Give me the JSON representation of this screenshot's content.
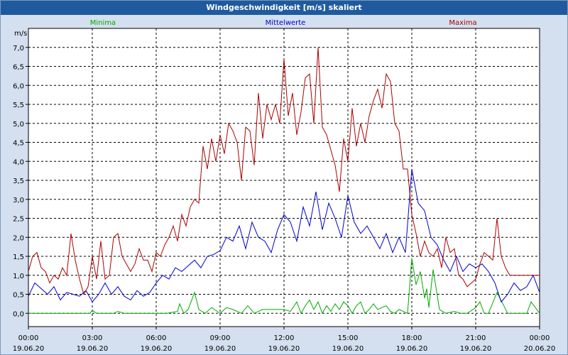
{
  "window": {
    "title": "Windgeschwindigkeit [m/s] skaliert"
  },
  "chart_data": {
    "type": "line",
    "title": "Windgeschwindigkeit [m/s] skaliert",
    "ylabel": "m/s",
    "xlabel": "",
    "ylim": [
      -0.35,
      7.5
    ],
    "xlim": [
      0,
      24
    ],
    "grid": true,
    "y_ticks": [
      {
        "value": 0.0,
        "label": "0,0"
      },
      {
        "value": 0.5,
        "label": "0,5"
      },
      {
        "value": 1.0,
        "label": "1,0"
      },
      {
        "value": 1.5,
        "label": "1,5"
      },
      {
        "value": 2.0,
        "label": "2,0"
      },
      {
        "value": 2.5,
        "label": "2,5"
      },
      {
        "value": 3.0,
        "label": "3,0"
      },
      {
        "value": 3.5,
        "label": "3,5"
      },
      {
        "value": 4.0,
        "label": "4,0"
      },
      {
        "value": 4.5,
        "label": "4,5"
      },
      {
        "value": 5.0,
        "label": "5,0"
      },
      {
        "value": 5.5,
        "label": "5,5"
      },
      {
        "value": 6.0,
        "label": "6,0"
      },
      {
        "value": 6.5,
        "label": "6,5"
      },
      {
        "value": 7.0,
        "label": "7,0"
      }
    ],
    "x_ticks": [
      {
        "value": 0,
        "time": "00:00",
        "date": "19.06.20"
      },
      {
        "value": 3,
        "time": "03:00",
        "date": "19.06.20"
      },
      {
        "value": 6,
        "time": "06:00",
        "date": "19.06.20"
      },
      {
        "value": 9,
        "time": "09:00",
        "date": "19.06.20"
      },
      {
        "value": 12,
        "time": "12:00",
        "date": "19.06.20"
      },
      {
        "value": 15,
        "time": "15:00",
        "date": "19.06.20"
      },
      {
        "value": 18,
        "time": "18:00",
        "date": "19.06.20"
      },
      {
        "value": 21,
        "time": "21:00",
        "date": "19.06.20"
      },
      {
        "value": 24,
        "time": "00:00",
        "date": "20.06.20"
      }
    ],
    "series": [
      {
        "name": "Minima",
        "color": "#00aa00",
        "x": [
          0,
          0.5,
          1,
          1.5,
          2,
          2.5,
          2.9,
          3.0,
          3.2,
          3.5,
          4,
          4.2,
          4.5,
          5,
          5.5,
          6,
          6.5,
          7.0,
          7.1,
          7.3,
          7.5,
          7.8,
          8,
          8.3,
          8.6,
          9,
          9.3,
          9.6,
          10,
          10.3,
          10.6,
          11,
          11.5,
          12,
          12.3,
          12.6,
          12.8,
          13,
          13.2,
          13.4,
          13.6,
          13.8,
          14,
          14.2,
          14.4,
          14.6,
          14.8,
          15,
          15.2,
          15.4,
          15.6,
          15.8,
          16,
          16.2,
          16.4,
          16.6,
          16.8,
          17,
          17.2,
          17.4,
          17.6,
          17.8,
          18,
          18.2,
          18.4,
          18.6,
          18.7,
          18.8,
          19.0,
          19.3,
          19.6,
          20,
          20.3,
          20.6,
          21,
          21.2,
          21.4,
          21.6,
          22,
          22.5,
          23,
          23.2,
          23.4,
          23.6,
          24
        ],
        "y": [
          0,
          0,
          0,
          0,
          0,
          0,
          0,
          0.08,
          0,
          0,
          0,
          0.05,
          0,
          0,
          0,
          0,
          0,
          0.05,
          0.25,
          0,
          0.1,
          0.55,
          0.1,
          0,
          0.15,
          0,
          0.15,
          0.1,
          0,
          0.2,
          0,
          0.1,
          0.1,
          0.1,
          0.05,
          0.3,
          0,
          0.2,
          0.35,
          0.1,
          0.3,
          0,
          0.2,
          0.05,
          0.25,
          0.1,
          0.3,
          0.2,
          0,
          0.2,
          0.3,
          0,
          0.1,
          0.25,
          0.1,
          0.15,
          0.2,
          0.05,
          0,
          0.1,
          0.05,
          0,
          1.45,
          0.75,
          1.1,
          0.4,
          0.65,
          0.15,
          1.15,
          0.1,
          0,
          0.05,
          0,
          0,
          0.15,
          0.3,
          0,
          0,
          0.55,
          0,
          0,
          0,
          0,
          0.3,
          0
        ],
        "legend": "Minima"
      },
      {
        "name": "Mittelwerte",
        "color": "#0000cc",
        "x": [
          0,
          0.3,
          0.6,
          0.9,
          1.2,
          1.5,
          1.8,
          2.1,
          2.4,
          2.7,
          3.0,
          3.3,
          3.6,
          3.9,
          4.2,
          4.5,
          4.8,
          5.1,
          5.4,
          5.7,
          6.0,
          6.3,
          6.6,
          6.9,
          7.2,
          7.5,
          7.8,
          8.1,
          8.4,
          8.7,
          9.0,
          9.3,
          9.6,
          9.9,
          10.2,
          10.5,
          10.8,
          11.1,
          11.4,
          11.7,
          12.0,
          12.3,
          12.6,
          12.9,
          13.2,
          13.5,
          13.8,
          14.1,
          14.4,
          14.7,
          15.0,
          15.3,
          15.6,
          15.9,
          16.2,
          16.5,
          16.8,
          17.1,
          17.4,
          17.7,
          18.0,
          18.3,
          18.6,
          18.9,
          19.2,
          19.5,
          19.8,
          20.1,
          20.4,
          20.7,
          21.0,
          21.3,
          21.6,
          21.9,
          22.2,
          22.5,
          22.8,
          23.1,
          23.4,
          23.7,
          24.0
        ],
        "y": [
          0.45,
          0.8,
          0.65,
          0.5,
          0.7,
          0.35,
          0.55,
          0.5,
          0.45,
          0.6,
          0.3,
          0.5,
          0.8,
          0.5,
          0.7,
          0.45,
          0.35,
          0.6,
          0.45,
          0.55,
          0.8,
          1.0,
          0.9,
          1.2,
          1.1,
          1.25,
          1.4,
          1.2,
          1.5,
          1.55,
          1.65,
          2.0,
          1.9,
          2.3,
          1.7,
          2.4,
          2.0,
          1.9,
          1.6,
          2.2,
          2.6,
          2.4,
          1.9,
          2.8,
          2.3,
          3.2,
          2.2,
          2.9,
          2.5,
          2.0,
          3.1,
          2.4,
          2.1,
          2.3,
          2.0,
          1.7,
          2.1,
          1.6,
          2.0,
          1.6,
          3.8,
          2.9,
          2.7,
          2.0,
          1.8,
          1.4,
          1.1,
          1.5,
          1.1,
          1.3,
          1.2,
          1.3,
          1.1,
          0.8,
          0.3,
          0.5,
          0.8,
          0.6,
          0.7,
          1.0,
          0.55
        ],
        "legend": "Mittelwerte"
      },
      {
        "name": "Maxima",
        "color": "#aa0000",
        "x": [
          0,
          0.2,
          0.4,
          0.6,
          0.8,
          1.0,
          1.2,
          1.4,
          1.6,
          1.8,
          2.0,
          2.2,
          2.4,
          2.6,
          2.8,
          3.0,
          3.2,
          3.4,
          3.6,
          3.8,
          4.0,
          4.2,
          4.4,
          4.6,
          4.8,
          5.0,
          5.2,
          5.4,
          5.6,
          5.8,
          6.0,
          6.2,
          6.4,
          6.6,
          6.8,
          7.0,
          7.2,
          7.4,
          7.6,
          7.8,
          8.0,
          8.2,
          8.4,
          8.6,
          8.8,
          9.0,
          9.2,
          9.4,
          9.6,
          9.8,
          10.0,
          10.2,
          10.4,
          10.6,
          10.8,
          11.0,
          11.2,
          11.4,
          11.6,
          11.8,
          12.0,
          12.2,
          12.4,
          12.6,
          12.8,
          13.0,
          13.2,
          13.4,
          13.6,
          13.8,
          14.0,
          14.2,
          14.4,
          14.6,
          14.8,
          15.0,
          15.2,
          15.4,
          15.6,
          15.8,
          16.0,
          16.2,
          16.4,
          16.6,
          16.8,
          17.0,
          17.2,
          17.4,
          17.6,
          17.8,
          18.0,
          18.2,
          18.4,
          18.6,
          18.8,
          19.0,
          19.2,
          19.4,
          19.6,
          19.8,
          20.0,
          20.2,
          20.4,
          20.6,
          20.8,
          21.0,
          21.2,
          21.4,
          21.6,
          21.8,
          22.0,
          22.2,
          22.4,
          22.6,
          22.8,
          23.0,
          23.2,
          23.4,
          23.6,
          23.8,
          24.0
        ],
        "y": [
          1.1,
          1.5,
          1.6,
          1.2,
          1.1,
          0.8,
          1.0,
          0.9,
          1.2,
          1.0,
          2.1,
          1.4,
          0.9,
          0.5,
          0.7,
          1.5,
          0.9,
          1.9,
          0.9,
          1.0,
          2.0,
          2.1,
          1.5,
          1.3,
          1.1,
          1.3,
          1.7,
          1.4,
          1.4,
          1.1,
          1.6,
          1.5,
          1.8,
          2.0,
          2.3,
          1.9,
          2.6,
          2.3,
          2.8,
          3.0,
          2.9,
          4.4,
          3.8,
          4.6,
          4.0,
          4.7,
          4.2,
          5.0,
          4.8,
          4.5,
          3.5,
          4.9,
          4.8,
          3.9,
          5.8,
          4.6,
          5.5,
          5.1,
          5.5,
          5.0,
          6.7,
          5.2,
          5.8,
          4.7,
          5.3,
          6.2,
          6.3,
          5.0,
          7.0,
          4.9,
          4.7,
          4.3,
          3.9,
          3.2,
          4.6,
          4.0,
          5.4,
          4.4,
          5.0,
          4.5,
          5.2,
          5.6,
          5.9,
          5.4,
          6.3,
          6.1,
          5.0,
          4.8,
          3.8,
          3.8,
          2.6,
          2.1,
          1.5,
          1.9,
          1.6,
          1.5,
          1.7,
          1.2,
          2.0,
          1.6,
          1.7,
          1.0,
          0.9,
          0.7,
          0.8,
          0.9,
          1.3,
          1.6,
          1.5,
          1.4,
          2.5,
          1.5,
          1.2,
          1.0,
          1.0,
          1.0,
          1.0,
          1.0,
          1.0,
          1.0,
          1.0
        ],
        "legend": "Maxima"
      }
    ],
    "legend_position": "top"
  }
}
